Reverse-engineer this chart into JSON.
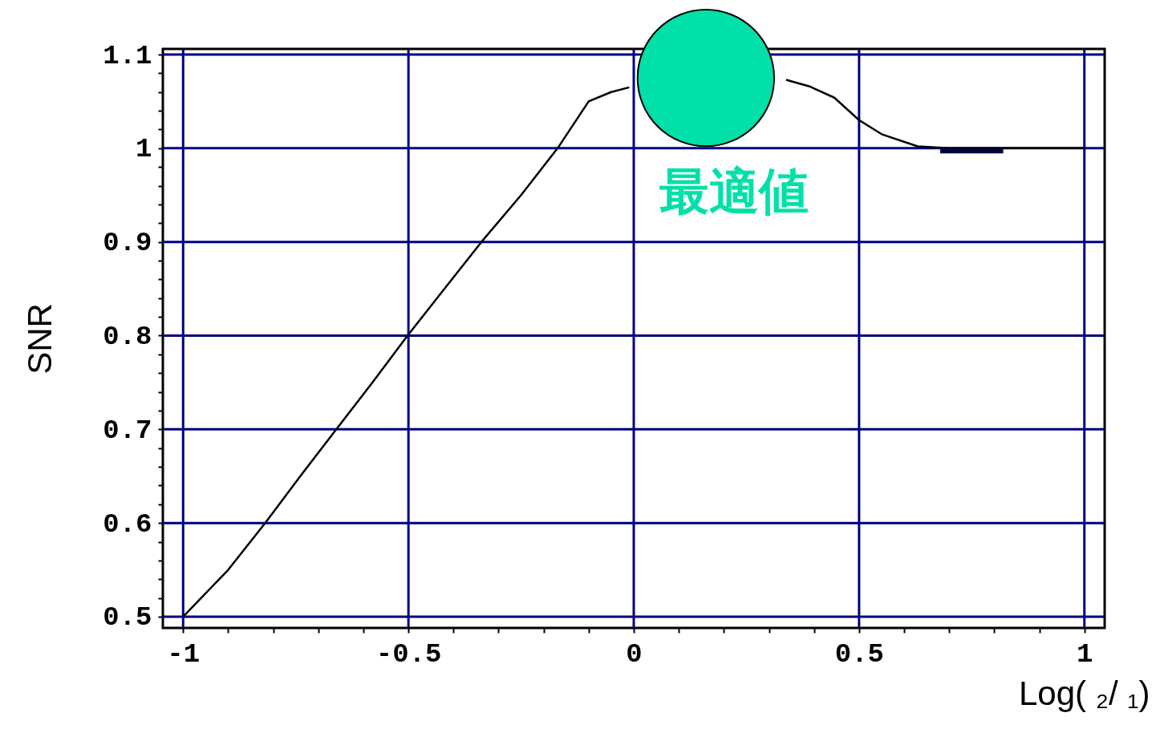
{
  "chart_data": {
    "type": "line",
    "xlabel": "Log(  ₂/  ₁)",
    "ylabel": "SNR",
    "xlim": [
      -1.045,
      1.045
    ],
    "ylim": [
      0.488,
      1.106
    ],
    "xticks": [
      -1,
      {
        "value": -0.9,
        "label": null
      },
      {
        "value": -0.8,
        "label": null
      },
      {
        "value": -0.7,
        "label": null
      },
      {
        "value": -0.6,
        "label": null
      },
      -0.5,
      {
        "value": -0.4,
        "label": null
      },
      {
        "value": -0.3,
        "label": null
      },
      {
        "value": -0.2,
        "label": null
      },
      {
        "value": -0.1,
        "label": null
      },
      0,
      {
        "value": 0.1,
        "label": null
      },
      {
        "value": 0.2,
        "label": null
      },
      {
        "value": 0.3,
        "label": null
      },
      {
        "value": 0.4,
        "label": null
      },
      0.5,
      {
        "value": 0.6,
        "label": null
      },
      {
        "value": 0.7,
        "label": null
      },
      {
        "value": 0.8,
        "label": null
      },
      {
        "value": 0.9,
        "label": null
      },
      1
    ],
    "yticks": [
      0.5,
      {
        "value": 0.52,
        "label": null
      },
      {
        "value": 0.54,
        "label": null
      },
      {
        "value": 0.56,
        "label": null
      },
      {
        "value": 0.58,
        "label": null
      },
      0.6,
      {
        "value": 0.62,
        "label": null
      },
      {
        "value": 0.64,
        "label": null
      },
      {
        "value": 0.66,
        "label": null
      },
      {
        "value": 0.68,
        "label": null
      },
      0.7,
      {
        "value": 0.72,
        "label": null
      },
      {
        "value": 0.74,
        "label": null
      },
      {
        "value": 0.76,
        "label": null
      },
      {
        "value": 0.78,
        "label": null
      },
      0.8,
      {
        "value": 0.82,
        "label": null
      },
      {
        "value": 0.84,
        "label": null
      },
      {
        "value": 0.86,
        "label": null
      },
      {
        "value": 0.88,
        "label": null
      },
      0.9,
      {
        "value": 0.92,
        "label": null
      },
      {
        "value": 0.94,
        "label": null
      },
      {
        "value": 0.96,
        "label": null
      },
      {
        "value": 0.98,
        "label": null
      },
      1,
      {
        "value": 1.02,
        "label": null
      },
      {
        "value": 1.04,
        "label": null
      },
      {
        "value": 1.06,
        "label": null
      },
      {
        "value": 1.08,
        "label": null
      },
      1.1
    ],
    "grid": true,
    "series": [
      {
        "color": "#000000",
        "line_style": "solid",
        "marker": "none",
        "x": [
          -1,
          -0.9,
          -0.818,
          -0.74,
          -0.66,
          -0.58,
          -0.502,
          -0.42,
          -0.338,
          -0.25,
          -0.169,
          -0.1,
          -0.05,
          -0.01,
          0.15,
          0.338,
          0.39,
          0.445,
          0.5,
          0.55,
          0.63,
          0.7,
          0.8,
          0.9,
          1
        ],
        "values": [
          0.5,
          0.55,
          0.6,
          0.65,
          0.7,
          0.75,
          0.8,
          0.85,
          0.9,
          0.95,
          1,
          1.05,
          1.06,
          1.065,
          null,
          1.073,
          1.066,
          1.054,
          1.03,
          1.015,
          1.002,
          1,
          1,
          1,
          1
        ]
      },
      {
        "color": "#000040",
        "line_style": "solid",
        "marker": "none",
        "x": [
          0.68,
          0.82
        ],
        "values": [
          0.997,
          0.997
        ]
      },
      {
        "type": "scatter",
        "color": "#00e0a8",
        "marker": "circle",
        "x": [
          0.16
        ],
        "values": [
          1.075
        ]
      }
    ],
    "annotations": [
      "最適値"
    ]
  }
}
